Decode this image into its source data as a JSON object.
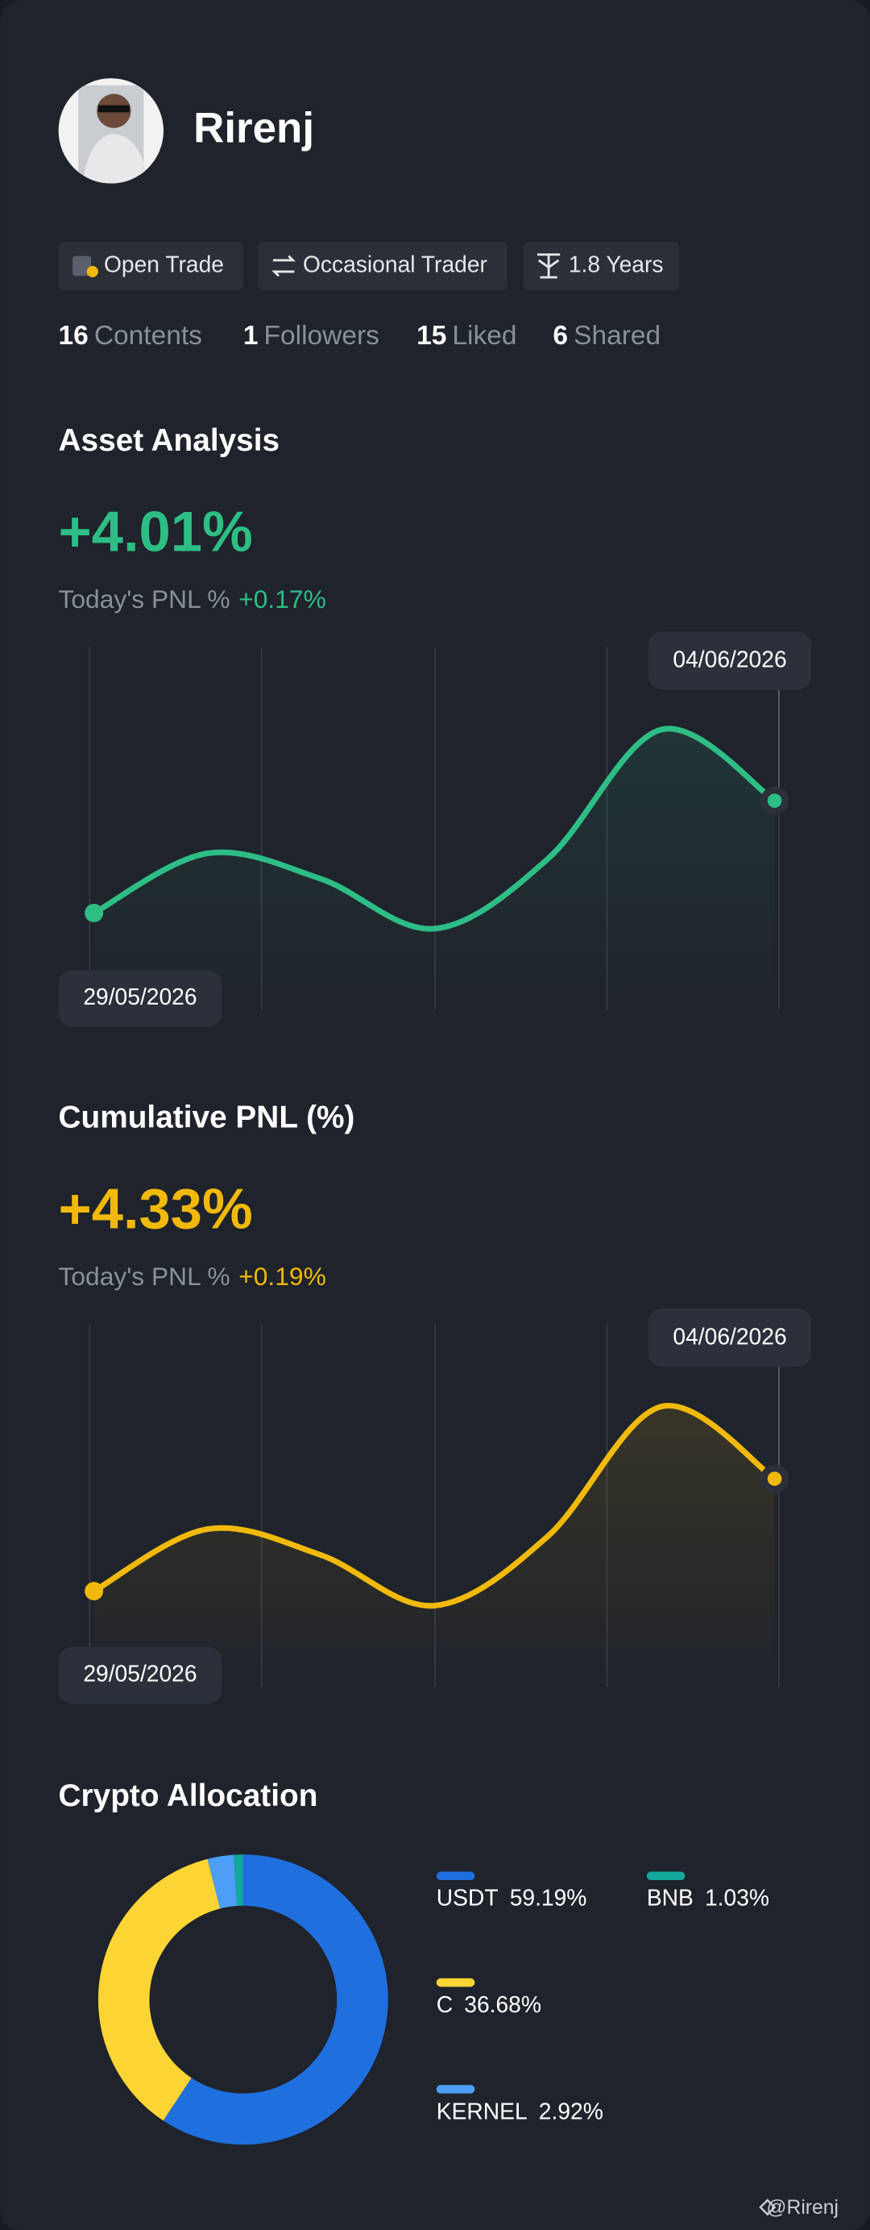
{
  "profile": {
    "name": "Rirenj",
    "badges": [
      "Open Trade",
      "Occasional Trader",
      "1.8 Years"
    ],
    "stats": [
      {
        "count": 16,
        "label": "Contents"
      },
      {
        "count": 1,
        "label": "Followers"
      },
      {
        "count": 15,
        "label": "Liked"
      },
      {
        "count": 6,
        "label": "Shared"
      }
    ]
  },
  "chart_data": [
    {
      "type": "line",
      "title": "Asset Analysis",
      "headline": "+4.01%",
      "today_label": "Today's PNL %",
      "today_value": "+0.17%",
      "categories": [
        "29/05/2026",
        null,
        null,
        null,
        null,
        null,
        "04/06/2026"
      ],
      "values": [
        0,
        2.13,
        1.22,
        -0.56,
        1.93,
        6.55,
        4.01
      ],
      "color": "#2ebd85"
    },
    {
      "type": "line",
      "title": "Cumulative PNL (%)",
      "headline": "+4.33%",
      "today_label": "Today's PNL %",
      "today_value": "+0.19%",
      "categories": [
        "29/05/2026",
        null,
        null,
        null,
        null,
        null,
        "04/06/2026"
      ],
      "values": [
        0,
        2.39,
        1.39,
        -0.56,
        2.11,
        7.11,
        4.33
      ],
      "color": "#f0b90b"
    },
    {
      "type": "donut",
      "title": "Crypto Allocation",
      "categories": [
        "USDT",
        "C",
        "KERNEL",
        "BNB"
      ],
      "values": [
        59.19,
        36.68,
        2.92,
        1.03
      ],
      "value_labels": [
        "59.19%",
        "36.68%",
        "2.92%",
        "1.03%"
      ],
      "colors": [
        "#1f6fde",
        "#fcd535",
        "#4c9ff5",
        "#12a89b"
      ]
    }
  ],
  "footer": "@Rirenj"
}
